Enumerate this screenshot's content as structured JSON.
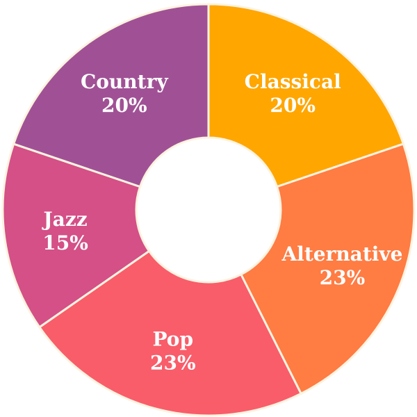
{
  "chart_data": {
    "type": "pie",
    "style": "donut",
    "direction": "clockwise",
    "slices": [
      {
        "label": "Classical",
        "percent_label": "20%",
        "value": 20,
        "color": "#FFA600"
      },
      {
        "label": "Alternative",
        "percent_label": "23%",
        "value": 23,
        "color": "#FF7C43"
      },
      {
        "label": "Pop",
        "percent_label": "23%",
        "value": 23,
        "color": "#F95D6A"
      },
      {
        "label": "Jazz",
        "percent_label": "15%",
        "value": 15,
        "color": "#D45087"
      },
      {
        "label": "Country",
        "percent_label": "20%",
        "value": 20,
        "color": "#A05195"
      }
    ]
  }
}
